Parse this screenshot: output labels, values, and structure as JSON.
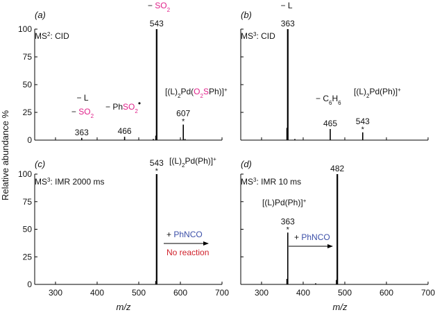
{
  "axes": {
    "ylabel": "Relative abundance %",
    "xlabel": "m/z",
    "x_ticks": [
      "300",
      "400",
      "500",
      "600",
      "700"
    ],
    "y_ticks": [
      "0",
      "25",
      "50",
      "75",
      "100"
    ]
  },
  "colors": {
    "pink": "#e0218a",
    "blue": "#3b4fa8",
    "red": "#d0202a"
  },
  "chart_data": [
    {
      "panel": "a",
      "panel_label": "(a)",
      "type": "bar",
      "mode": {
        "prefix": "MS",
        "sup": "2",
        "suffix": ": CID"
      },
      "xlim": [
        250,
        700
      ],
      "ylim": [
        0,
        100
      ],
      "peaks": [
        {
          "mz": 363,
          "rel": 2
        },
        {
          "mz": 466,
          "rel": 3
        },
        {
          "mz": 535,
          "rel": 1
        },
        {
          "mz": 541,
          "rel": 4
        },
        {
          "mz": 543,
          "rel": 100
        },
        {
          "mz": 607,
          "rel": 14
        },
        {
          "mz": 611,
          "rel": 1
        }
      ],
      "labels": [
        {
          "mz": 363,
          "text": "363"
        },
        {
          "mz": 466,
          "text": "466"
        },
        {
          "mz": 543,
          "text": "543"
        },
        {
          "mz": 607,
          "text": "607"
        }
      ],
      "ion_label": {
        "prefix": "[(L)",
        "sub": "2",
        "mid": "Pd(",
        "pink": "O",
        "pink_sub": "2",
        "pink_tail": "S",
        "tail": "Ph)]",
        "sup": "+"
      },
      "losses": {
        "l": "− L",
        "so2_a": {
          "prefix": "− ",
          "text": "SO",
          "sub": "2"
        },
        "phso2": {
          "prefix": "− Ph",
          "pink": "SO",
          "sub": "2",
          "dot": "•"
        },
        "so2_b": {
          "prefix": "− ",
          "text": "SO",
          "sub": "2"
        }
      }
    },
    {
      "panel": "b",
      "panel_label": "(b)",
      "type": "bar",
      "mode": {
        "prefix": "MS",
        "sup": "3",
        "suffix": ": CID"
      },
      "xlim": [
        250,
        700
      ],
      "ylim": [
        0,
        100
      ],
      "peaks": [
        {
          "mz": 361,
          "rel": 11
        },
        {
          "mz": 363,
          "rel": 100
        },
        {
          "mz": 380,
          "rel": 1
        },
        {
          "mz": 465,
          "rel": 10
        },
        {
          "mz": 543,
          "rel": 7
        }
      ],
      "labels": [
        {
          "mz": 363,
          "text": "363"
        },
        {
          "mz": 465,
          "text": "465"
        },
        {
          "mz": 543,
          "text": "543"
        }
      ],
      "ion_label": {
        "prefix": "[(L)",
        "sub": "2",
        "tail": "Pd(Ph)]",
        "sup": "+"
      },
      "losses": {
        "l": "− L",
        "c6h6": "− C6H6"
      }
    },
    {
      "panel": "c",
      "panel_label": "(c)",
      "type": "bar",
      "mode": {
        "prefix": "MS",
        "sup": "3",
        "suffix": ": IMR 2000 ms"
      },
      "xlim": [
        250,
        700
      ],
      "ylim": [
        0,
        100
      ],
      "peaks": [
        {
          "mz": 541,
          "rel": 3
        },
        {
          "mz": 543,
          "rel": 100
        }
      ],
      "labels": [
        {
          "mz": 543,
          "text": "543"
        }
      ],
      "ion_label": {
        "prefix": "[(L)",
        "sub": "2",
        "tail": "Pd(Ph)]",
        "sup": "+"
      },
      "reagent": "+ PhNCO",
      "note": "No reaction"
    },
    {
      "panel": "d",
      "panel_label": "(d)",
      "type": "bar",
      "mode": {
        "prefix": "MS",
        "sup": "3",
        "suffix": ": IMR 10 ms"
      },
      "xlim": [
        250,
        700
      ],
      "ylim": [
        0,
        100
      ],
      "peaks": [
        {
          "mz": 361,
          "rel": 5
        },
        {
          "mz": 363,
          "rel": 47
        },
        {
          "mz": 430,
          "rel": 1
        },
        {
          "mz": 480,
          "rel": 4
        },
        {
          "mz": 482,
          "rel": 100
        }
      ],
      "labels": [
        {
          "mz": 363,
          "text": "363"
        },
        {
          "mz": 482,
          "text": "482"
        }
      ],
      "ion_label": {
        "prefix": "[(L)Pd(Ph)]",
        "sup": "+"
      },
      "reagent": "+ PhNCO"
    }
  ]
}
